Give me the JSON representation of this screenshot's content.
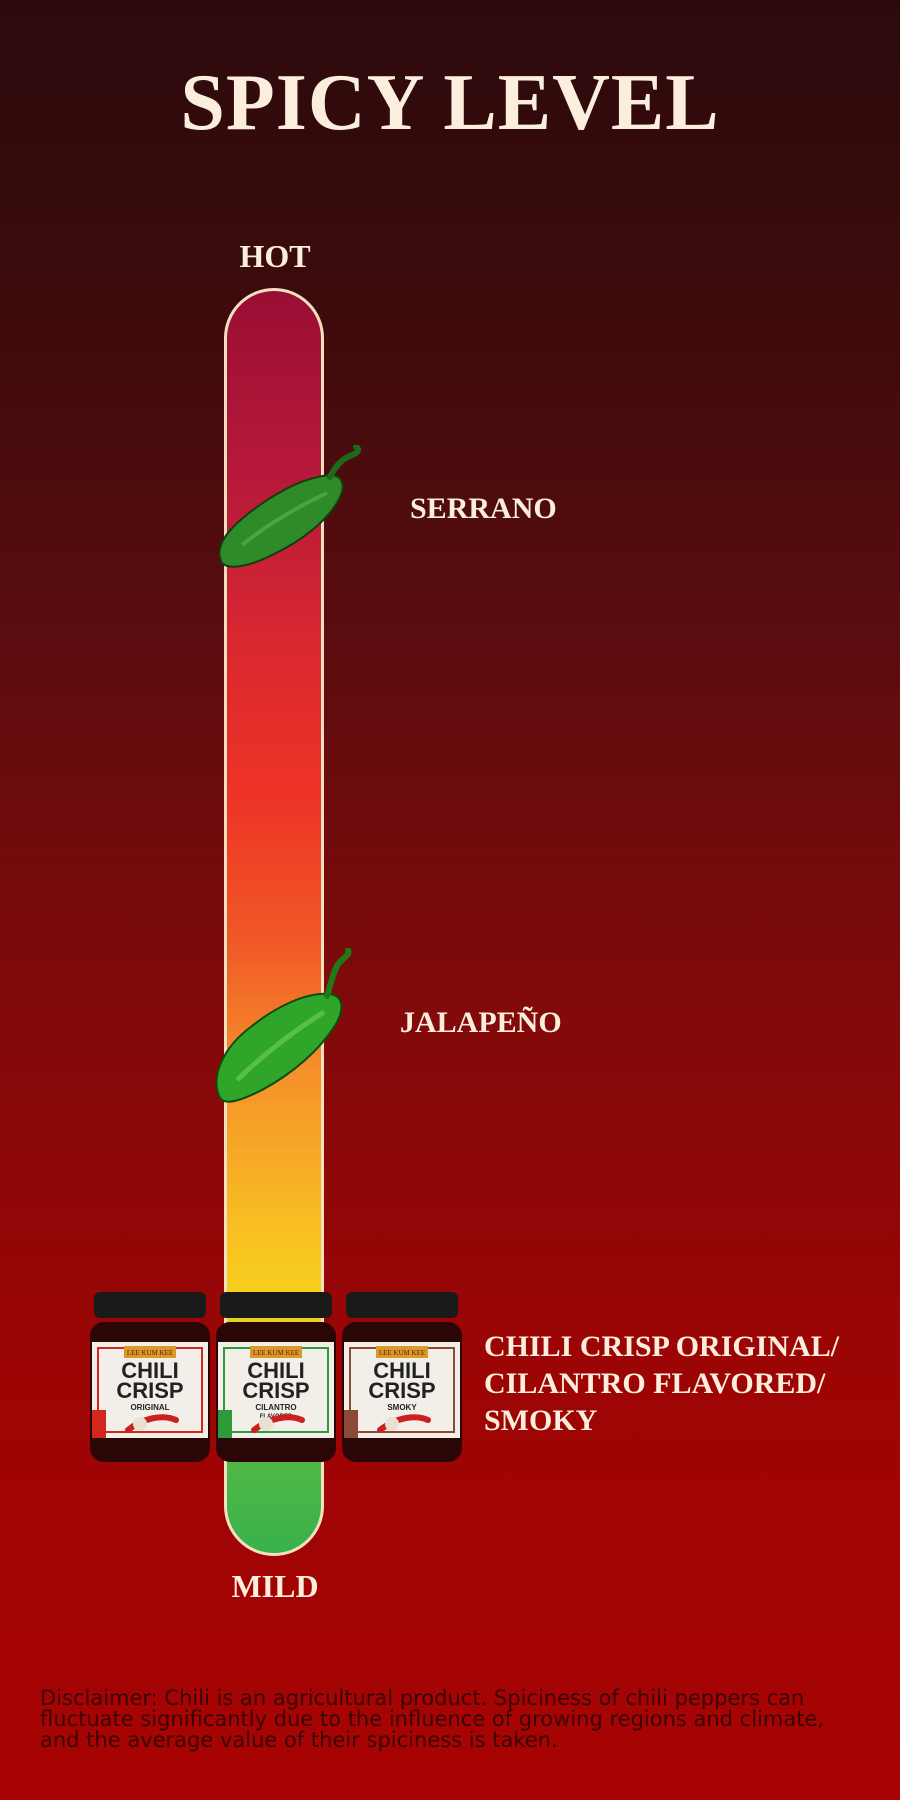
{
  "title": "SPICY LEVEL",
  "scale": {
    "top_label": "HOT",
    "bottom_label": "MILD",
    "colors": [
      "#9a0e34",
      "#ee3326",
      "#f5912a",
      "#f6d11d",
      "#37b24a"
    ]
  },
  "markers": [
    {
      "label": "SERRANO",
      "icon": "serrano-pepper-icon"
    },
    {
      "label": "JALAPEÑO",
      "icon": "jalapeno-pepper-icon"
    }
  ],
  "products": {
    "label_lines": [
      "CHILI CRISP ORIGINAL/",
      "CILANTRO FLAVORED/",
      "SMOKY"
    ],
    "jars": [
      {
        "brand": "LEE KUM KEE",
        "name_line1": "CHILI",
        "name_line2": "CRISP",
        "variant": "ORIGINAL",
        "variant2": "",
        "accent": "#d3261f"
      },
      {
        "brand": "LEE KUM KEE",
        "name_line1": "CHILI",
        "name_line2": "CRISP",
        "variant": "CILANTRO",
        "variant2": "FLAVORED",
        "accent": "#2e9a3a"
      },
      {
        "brand": "LEE KUM KEE",
        "name_line1": "CHILI",
        "name_line2": "CRISP",
        "variant": "SMOKY",
        "variant2": "",
        "accent": "#8a4a36"
      }
    ]
  },
  "disclaimer": "Disclaimer: Chili is an agricultural product. Spiciness of chili peppers can fluctuate significantly due to the influence of growing regions and climate, and the average value of their spiciness is taken."
}
